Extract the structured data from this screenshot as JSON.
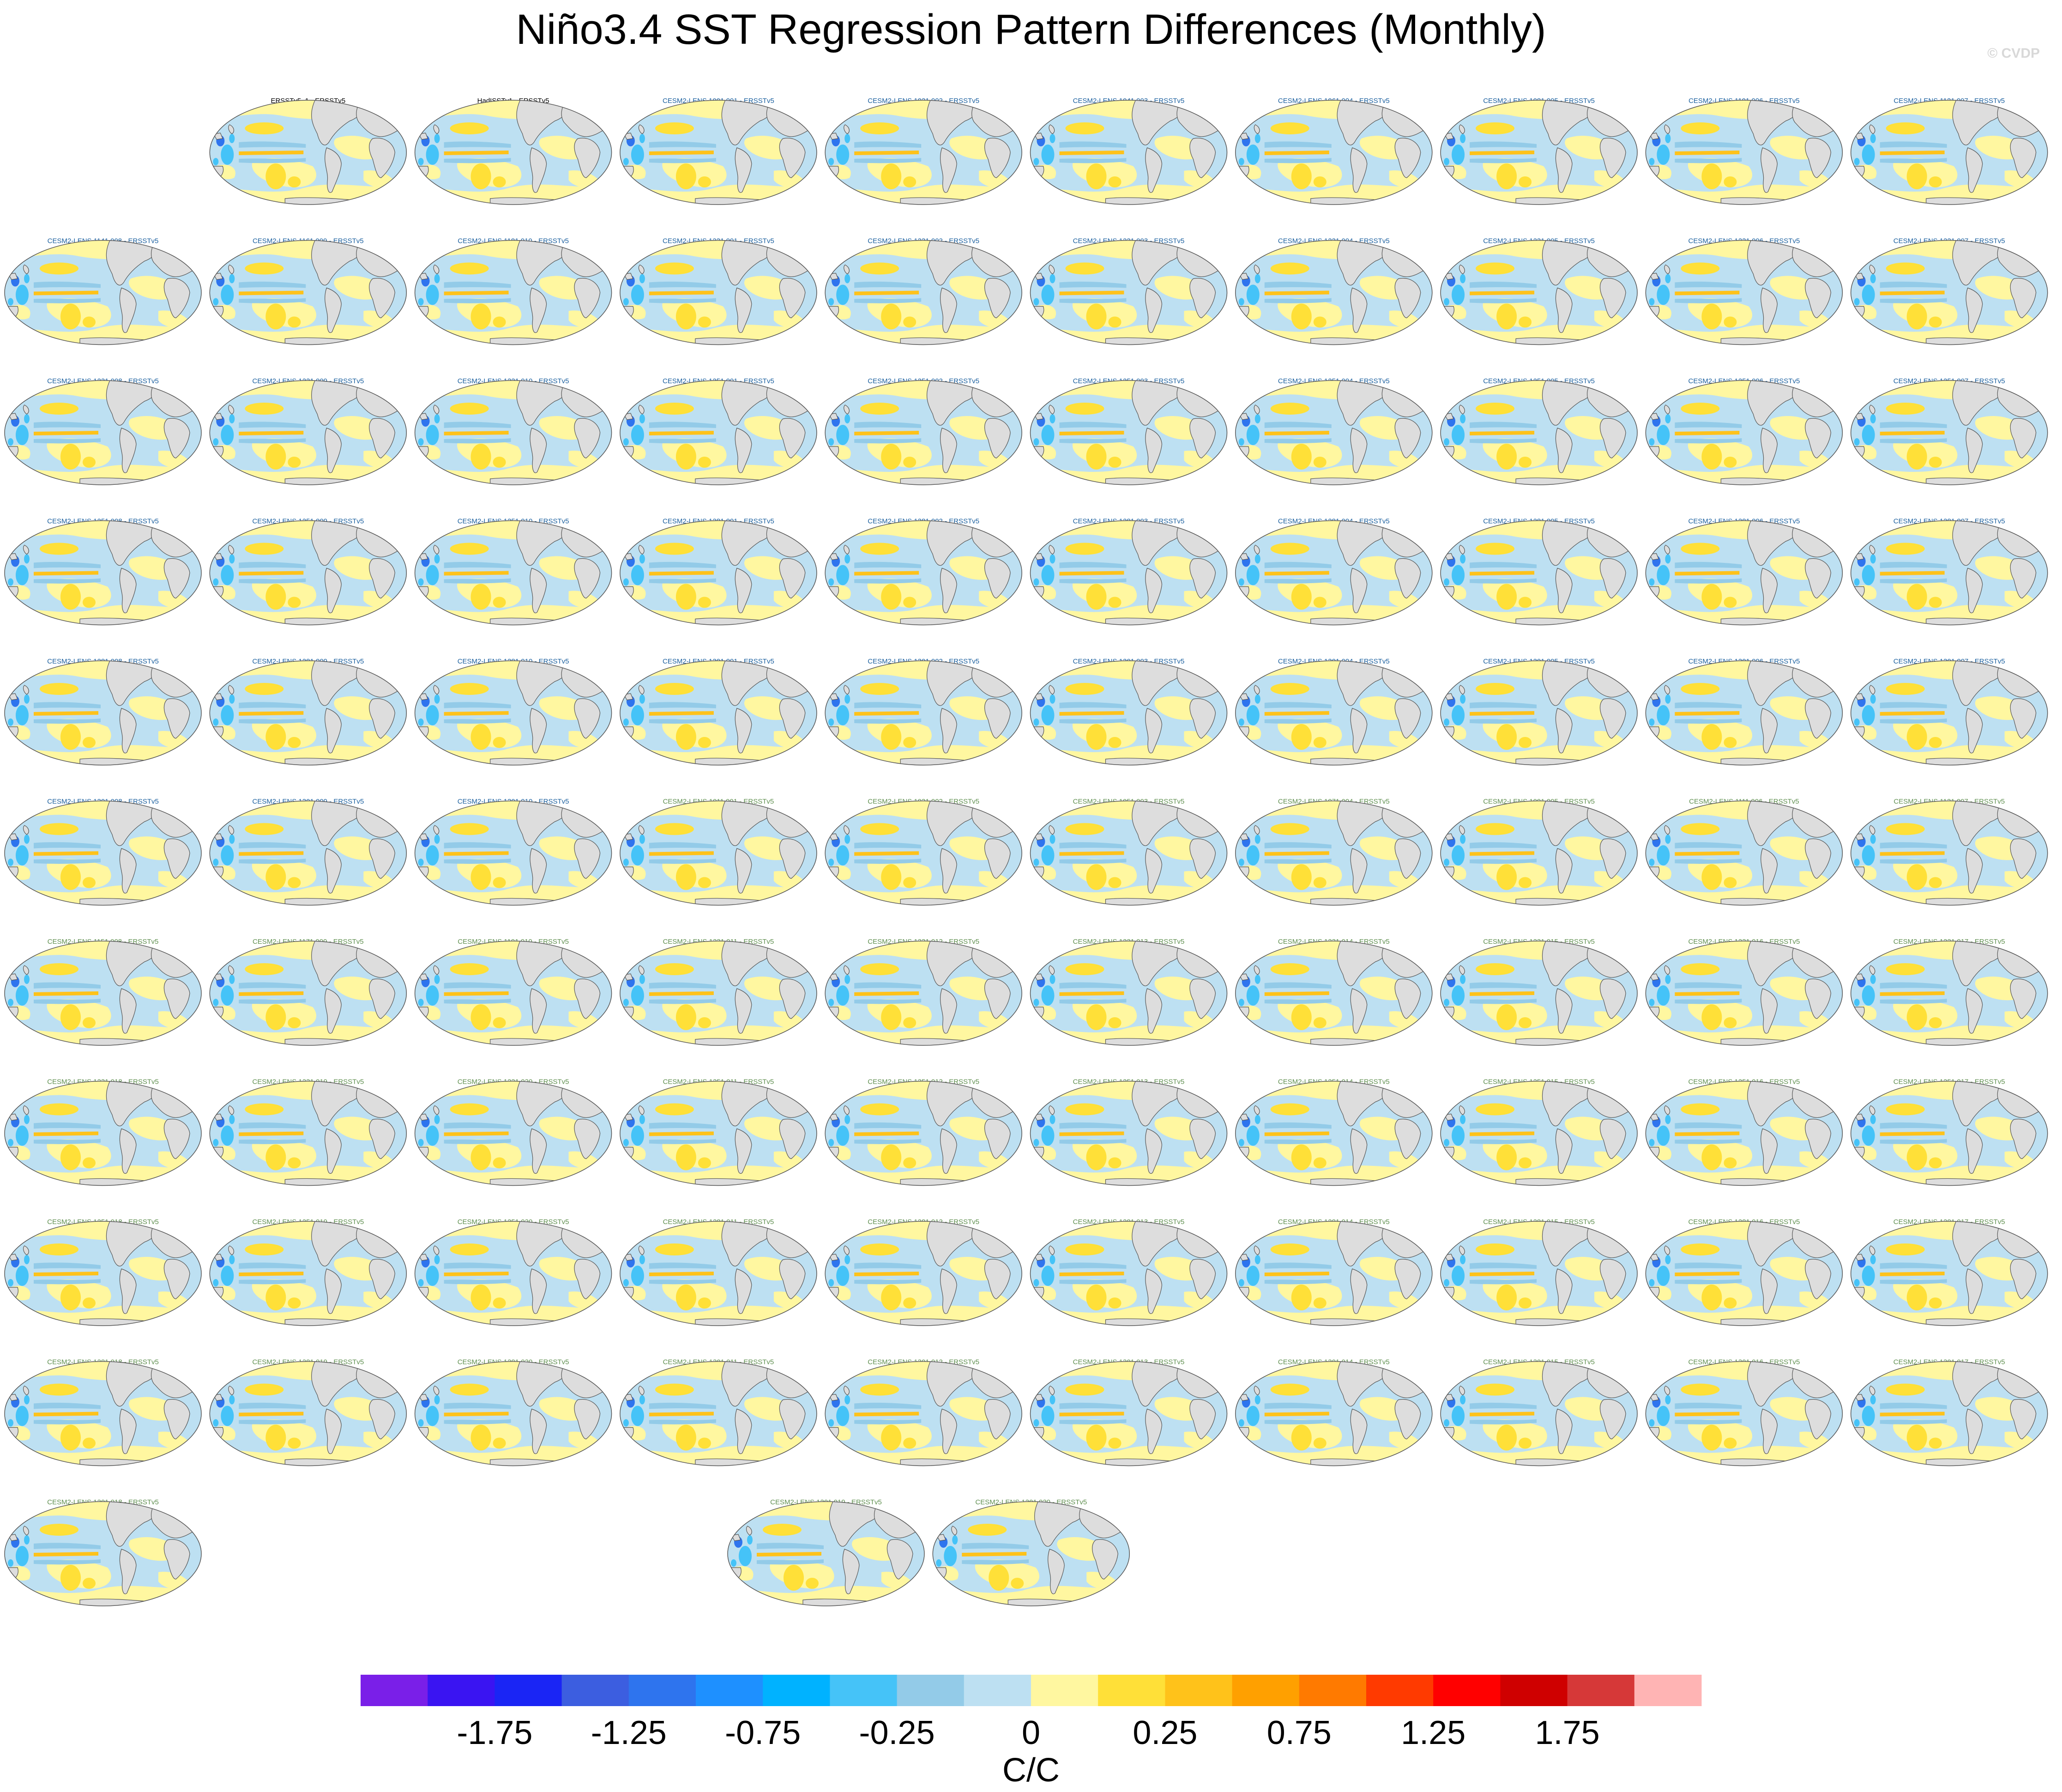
{
  "title": "Niño3.4 SST Regression Pattern Differences (Monthly)",
  "copyright": "© CVDP",
  "colorbar": {
    "unit_label": "C/C",
    "tick_labels": [
      "-1.75",
      "-1.25",
      "-0.75",
      "-0.25",
      "0",
      "0.25",
      "0.75",
      "1.25",
      "1.75"
    ],
    "colors": [
      "#7a1fe8",
      "#3a14f2",
      "#1a25f5",
      "#3c5ee0",
      "#2e74ee",
      "#1e90ff",
      "#00b2ff",
      "#45c3f8",
      "#93cbe8",
      "#bde0f2",
      "#fff7a0",
      "#ffe038",
      "#ffc21a",
      "#ffa000",
      "#ff7a00",
      "#ff3a00",
      "#ff0000",
      "#cf0000",
      "#d63838",
      "#ffb4b4"
    ],
    "title_color_obs": "#000000",
    "title_color_set1": "#1a5f9e",
    "title_color_set2": "#5f8f4f"
  },
  "chart_data": {
    "type": "heatmap",
    "description_type": "map panel grid",
    "panels": [
      "ERSSTv5_1 - ERSSTv5",
      "HadISSTv1 - ERSSTv5",
      "CESM2-LENS 1001.001 - ERSSTv5",
      "CESM2-LENS 1021.002 - ERSSTv5",
      "CESM2-LENS 1041.003 - ERSSTv5",
      "CESM2-LENS 1061.004 - ERSSTv5",
      "CESM2-LENS 1081.005 - ERSSTv5",
      "CESM2-LENS 1101.006 - ERSSTv5",
      "CESM2-LENS 1121.007 - ERSSTv5",
      "CESM2-LENS 1141.008 - ERSSTv5",
      "CESM2-LENS 1161.009 - ERSSTv5",
      "CESM2-LENS 1181.010 - ERSSTv5",
      "CESM2-LENS 1231.001 - ERSSTv5",
      "CESM2-LENS 1231.002 - ERSSTv5",
      "CESM2-LENS 1231.003 - ERSSTv5",
      "CESM2-LENS 1231.004 - ERSSTv5",
      "CESM2-LENS 1231.005 - ERSSTv5",
      "CESM2-LENS 1231.006 - ERSSTv5",
      "CESM2-LENS 1231.007 - ERSSTv5",
      "CESM2-LENS 1231.008 - ERSSTv5",
      "CESM2-LENS 1231.009 - ERSSTv5",
      "CESM2-LENS 1231.010 - ERSSTv5",
      "CESM2-LENS 1251.001 - ERSSTv5",
      "CESM2-LENS 1251.002 - ERSSTv5",
      "CESM2-LENS 1251.003 - ERSSTv5",
      "CESM2-LENS 1251.004 - ERSSTv5",
      "CESM2-LENS 1251.005 - ERSSTv5",
      "CESM2-LENS 1251.006 - ERSSTv5",
      "CESM2-LENS 1251.007 - ERSSTv5",
      "CESM2-LENS 1251.008 - ERSSTv5",
      "CESM2-LENS 1251.009 - ERSSTv5",
      "CESM2-LENS 1251.010 - ERSSTv5",
      "CESM2-LENS 1281.001 - ERSSTv5",
      "CESM2-LENS 1281.002 - ERSSTv5",
      "CESM2-LENS 1281.003 - ERSSTv5",
      "CESM2-LENS 1281.004 - ERSSTv5",
      "CESM2-LENS 1281.005 - ERSSTv5",
      "CESM2-LENS 1281.006 - ERSSTv5",
      "CESM2-LENS 1281.007 - ERSSTv5",
      "CESM2-LENS 1281.008 - ERSSTv5",
      "CESM2-LENS 1281.009 - ERSSTv5",
      "CESM2-LENS 1281.010 - ERSSTv5",
      "CESM2-LENS 1301.001 - ERSSTv5",
      "CESM2-LENS 1301.002 - ERSSTv5",
      "CESM2-LENS 1301.003 - ERSSTv5",
      "CESM2-LENS 1301.004 - ERSSTv5",
      "CESM2-LENS 1301.005 - ERSSTv5",
      "CESM2-LENS 1301.006 - ERSSTv5",
      "CESM2-LENS 1301.007 - ERSSTv5",
      "CESM2-LENS 1301.008 - ERSSTv5",
      "CESM2-LENS 1301.009 - ERSSTv5",
      "CESM2-LENS 1301.010 - ERSSTv5",
      "CESM2-LENS 1011.001 - ERSSTv5",
      "CESM2-LENS 1031.002 - ERSSTv5",
      "CESM2-LENS 1051.003 - ERSSTv5",
      "CESM2-LENS 1071.004 - ERSSTv5",
      "CESM2-LENS 1091.005 - ERSSTv5",
      "CESM2-LENS 1111.006 - ERSSTv5",
      "CESM2-LENS 1131.007 - ERSSTv5",
      "CESM2-LENS 1151.008 - ERSSTv5",
      "CESM2-LENS 1171.009 - ERSSTv5",
      "CESM2-LENS 1191.010 - ERSSTv5",
      "CESM2-LENS 1231.011 - ERSSTv5",
      "CESM2-LENS 1231.012 - ERSSTv5",
      "CESM2-LENS 1231.013 - ERSSTv5",
      "CESM2-LENS 1231.014 - ERSSTv5",
      "CESM2-LENS 1231.015 - ERSSTv5",
      "CESM2-LENS 1231.016 - ERSSTv5",
      "CESM2-LENS 1231.017 - ERSSTv5",
      "CESM2-LENS 1231.018 - ERSSTv5",
      "CESM2-LENS 1231.019 - ERSSTv5",
      "CESM2-LENS 1231.020 - ERSSTv5",
      "CESM2-LENS 1251.011 - ERSSTv5",
      "CESM2-LENS 1251.012 - ERSSTv5",
      "CESM2-LENS 1251.013 - ERSSTv5",
      "CESM2-LENS 1251.014 - ERSSTv5",
      "CESM2-LENS 1251.015 - ERSSTv5",
      "CESM2-LENS 1251.016 - ERSSTv5",
      "CESM2-LENS 1251.017 - ERSSTv5",
      "CESM2-LENS 1251.018 - ERSSTv5",
      "CESM2-LENS 1251.019 - ERSSTv5",
      "CESM2-LENS 1251.020 - ERSSTv5",
      "CESM2-LENS 1281.011 - ERSSTv5",
      "CESM2-LENS 1281.012 - ERSSTv5",
      "CESM2-LENS 1281.013 - ERSSTv5",
      "CESM2-LENS 1281.014 - ERSSTv5",
      "CESM2-LENS 1281.015 - ERSSTv5",
      "CESM2-LENS 1281.016 - ERSSTv5",
      "CESM2-LENS 1281.017 - ERSSTv5",
      "CESM2-LENS 1281.018 - ERSSTv5",
      "CESM2-LENS 1281.019 - ERSSTv5",
      "CESM2-LENS 1281.020 - ERSSTv5",
      "CESM2-LENS 1301.011 - ERSSTv5",
      "CESM2-LENS 1301.012 - ERSSTv5",
      "CESM2-LENS 1301.013 - ERSSTv5",
      "CESM2-LENS 1301.014 - ERSSTv5",
      "CESM2-LENS 1301.015 - ERSSTv5",
      "CESM2-LENS 1301.016 - ERSSTv5",
      "CESM2-LENS 1301.017 - ERSSTv5",
      "CESM2-LENS 1301.018 - ERSSTv5",
      "CESM2-LENS 1301.019 - ERSSTv5",
      "CESM2-LENS 1301.020 - ERSSTv5"
    ]
  }
}
